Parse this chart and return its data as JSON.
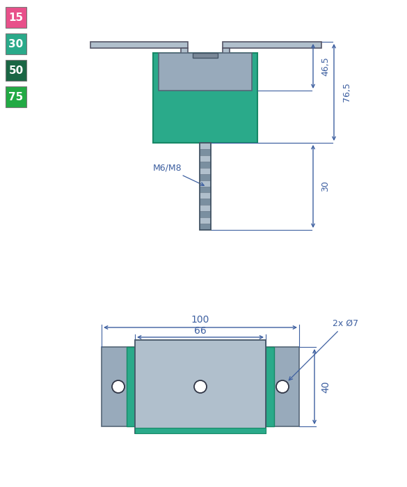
{
  "bg_color": "#ffffff",
  "dim_color": "#3d5fa0",
  "teal_color": "#2aaa8a",
  "steel_light": "#b0bfcc",
  "steel_mid": "#98aabb",
  "steel_dark": "#7a8fa0",
  "legend_items": [
    {
      "label": "15",
      "color": "#e8508a"
    },
    {
      "label": "30",
      "color": "#2aaa8a"
    },
    {
      "label": "50",
      "color": "#1a6644"
    },
    {
      "label": "75",
      "color": "#22aa44"
    }
  ],
  "annotations": {
    "M6M8": "M6/M8",
    "dim_465": "46,5",
    "dim_765": "76,5",
    "dim_30": "30",
    "dim_100": "100",
    "dim_66": "66",
    "dim_2x7": "2x Ø7",
    "dim_40": "40"
  }
}
